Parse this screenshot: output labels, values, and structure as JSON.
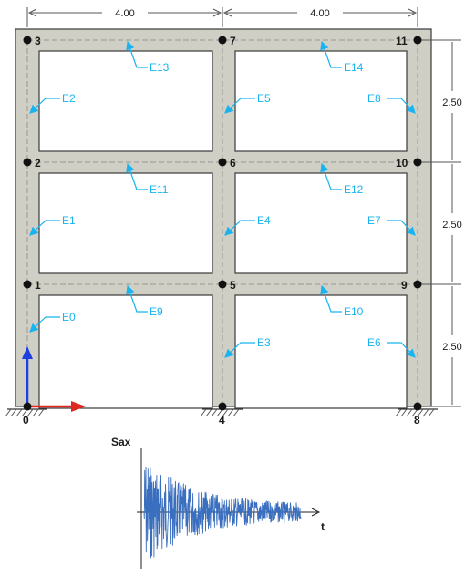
{
  "colors": {
    "member_fill": "#cfcfc6",
    "member_stroke": "#3a3a3a",
    "axis_line": "#a8a8a0",
    "element_label": "#19b4ef",
    "node": "#111111",
    "global_y_axis": "#1e3fe0",
    "global_x_axis": "#e0281e",
    "signal": "#3a6fbf"
  },
  "dimensions": {
    "bays": [
      "4.00",
      "4.00"
    ],
    "storeys": [
      "2.50",
      "2.50",
      "2.50"
    ]
  },
  "nodes": [
    "0",
    "1",
    "2",
    "3",
    "4",
    "5",
    "6",
    "7",
    "8",
    "9",
    "10",
    "11"
  ],
  "elements": [
    "E0",
    "E1",
    "E2",
    "E3",
    "E4",
    "E5",
    "E6",
    "E7",
    "E8",
    "E9",
    "E10",
    "E11",
    "E12",
    "E13",
    "E14"
  ],
  "signal": {
    "y_label": "Sax",
    "x_label": "t"
  },
  "icons": {
    "support": "fixed-support-hatch-icon",
    "axes": "global-axes-icon"
  }
}
